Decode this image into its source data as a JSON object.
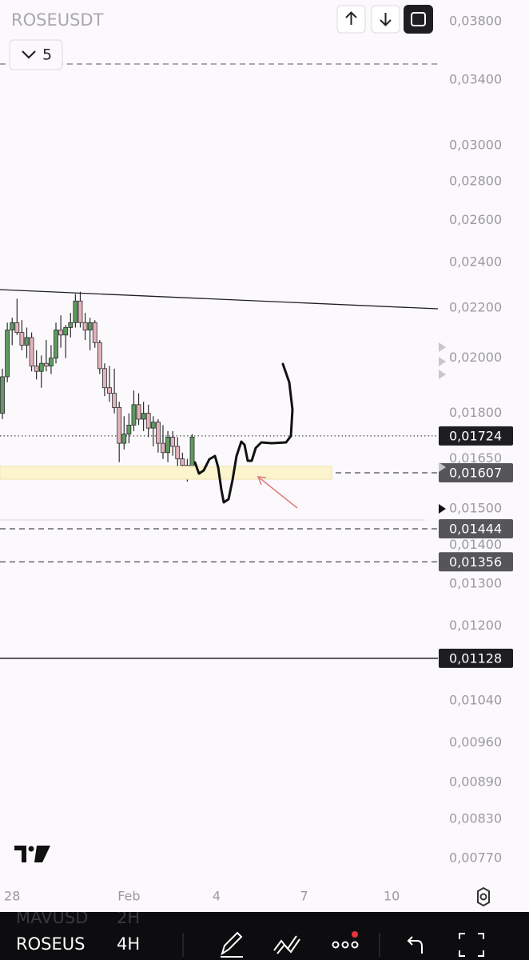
{
  "header": {
    "symbol": "ROSEUSDT",
    "interval_button": "5"
  },
  "chart_data": {
    "type": "candlestick",
    "log_scale": true,
    "up_color": "#5e9b5f",
    "down_color": "#e3b3bb",
    "xlim": [
      -0.5,
      89.5
    ],
    "xticks": [
      {
        "value": 2,
        "label": "28"
      },
      {
        "value": 26,
        "label": "Feb"
      },
      {
        "value": 44,
        "label": "4"
      },
      {
        "value": 62,
        "label": "7"
      },
      {
        "value": 80,
        "label": "10"
      }
    ],
    "ylim": [
      0.00739,
      0.0396
    ],
    "yticks": [
      {
        "value": 0.038,
        "label": "0,03800"
      },
      {
        "value": 0.034,
        "label": "0,03400"
      },
      {
        "value": 0.03,
        "label": "0,03000"
      },
      {
        "value": 0.028,
        "label": "0,02800"
      },
      {
        "value": 0.026,
        "label": "0,02600"
      },
      {
        "value": 0.024,
        "label": "0,02400"
      },
      {
        "value": 0.022,
        "label": "0,02200"
      },
      {
        "value": 0.02,
        "label": "0,02000"
      },
      {
        "value": 0.018,
        "label": "0,01800"
      },
      {
        "value": 0.0165,
        "label": "0,01650"
      },
      {
        "value": 0.015,
        "label": "0,01500"
      },
      {
        "value": 0.014,
        "label": "0,01400"
      },
      {
        "value": 0.013,
        "label": "0,01300"
      },
      {
        "value": 0.012,
        "label": "0,01200"
      },
      {
        "value": 0.0104,
        "label": "0,01040"
      },
      {
        "value": 0.0096,
        "label": "0,00960"
      },
      {
        "value": 0.0089,
        "label": "0,00890"
      },
      {
        "value": 0.0083,
        "label": "0,00830"
      },
      {
        "value": 0.0077,
        "label": "0,00770"
      }
    ],
    "open": [
      0.018,
      0.0193,
      0.0211,
      0.0214,
      0.021,
      0.0205,
      0.0208,
      0.0197,
      0.0195,
      0.0198,
      0.0197,
      0.02,
      0.0211,
      0.0209,
      0.0212,
      0.0214,
      0.0223,
      0.0214,
      0.0211,
      0.0214,
      0.0206,
      0.0196,
      0.0189,
      0.0187,
      0.0182,
      0.017,
      0.0173,
      0.0176,
      0.0183,
      0.0178,
      0.018,
      0.0175,
      0.0177,
      0.017,
      0.0167,
      0.0172,
      0.0169,
      0.0165,
      0.0163,
      0.0161
    ],
    "high": [
      0.0196,
      0.0214,
      0.0216,
      0.0224,
      0.0215,
      0.0212,
      0.021,
      0.0203,
      0.0201,
      0.0207,
      0.0205,
      0.0214,
      0.0217,
      0.0213,
      0.0218,
      0.0226,
      0.0227,
      0.0218,
      0.0216,
      0.0215,
      0.0207,
      0.0198,
      0.0197,
      0.0196,
      0.0184,
      0.0179,
      0.018,
      0.0188,
      0.0187,
      0.0184,
      0.0183,
      0.0179,
      0.0178,
      0.0176,
      0.0174,
      0.0174,
      0.0172,
      0.0167,
      0.0165,
      0.0173
    ],
    "low": [
      0.0178,
      0.0191,
      0.0205,
      0.0209,
      0.0203,
      0.02,
      0.0195,
      0.0192,
      0.0189,
      0.0195,
      0.0194,
      0.0198,
      0.0204,
      0.02,
      0.0208,
      0.0212,
      0.0212,
      0.0207,
      0.0203,
      0.0204,
      0.0194,
      0.0186,
      0.0184,
      0.018,
      0.0164,
      0.0168,
      0.017,
      0.0174,
      0.0176,
      0.0174,
      0.0172,
      0.0169,
      0.0167,
      0.0165,
      0.0164,
      0.0166,
      0.0162,
      0.0159,
      0.0158,
      0.0159
    ],
    "close": [
      0.0193,
      0.0211,
      0.0214,
      0.021,
      0.0205,
      0.0208,
      0.0197,
      0.0195,
      0.0198,
      0.0197,
      0.02,
      0.0211,
      0.0209,
      0.0212,
      0.0214,
      0.0223,
      0.0214,
      0.0211,
      0.0214,
      0.0206,
      0.0196,
      0.0189,
      0.0187,
      0.0182,
      0.017,
      0.0173,
      0.0176,
      0.0183,
      0.0178,
      0.018,
      0.0175,
      0.0177,
      0.017,
      0.0167,
      0.0172,
      0.0169,
      0.0165,
      0.0163,
      0.0161,
      0.0172
    ],
    "price_lines": [
      {
        "value": 0.01724,
        "label": "0,01724",
        "style": "dotted",
        "color": "#1e1e22"
      },
      {
        "value": 0.01607,
        "label": "0,01607",
        "style": "dashed",
        "color": "#55555a"
      },
      {
        "value": 0.01444,
        "label": "0,01444",
        "style": "dashed",
        "color": "#55555a"
      },
      {
        "value": 0.01356,
        "label": "0,01356",
        "style": "dashed",
        "color": "#55555a"
      },
      {
        "value": 0.01128,
        "label": "0,01128",
        "style": "solid",
        "color": "#1e1e22"
      }
    ]
  },
  "bottom_bar": {
    "symbol": "ROSEUS",
    "interval": "4H",
    "ghost_symbol": "MAVUSD",
    "ghost_interval": "2H"
  }
}
